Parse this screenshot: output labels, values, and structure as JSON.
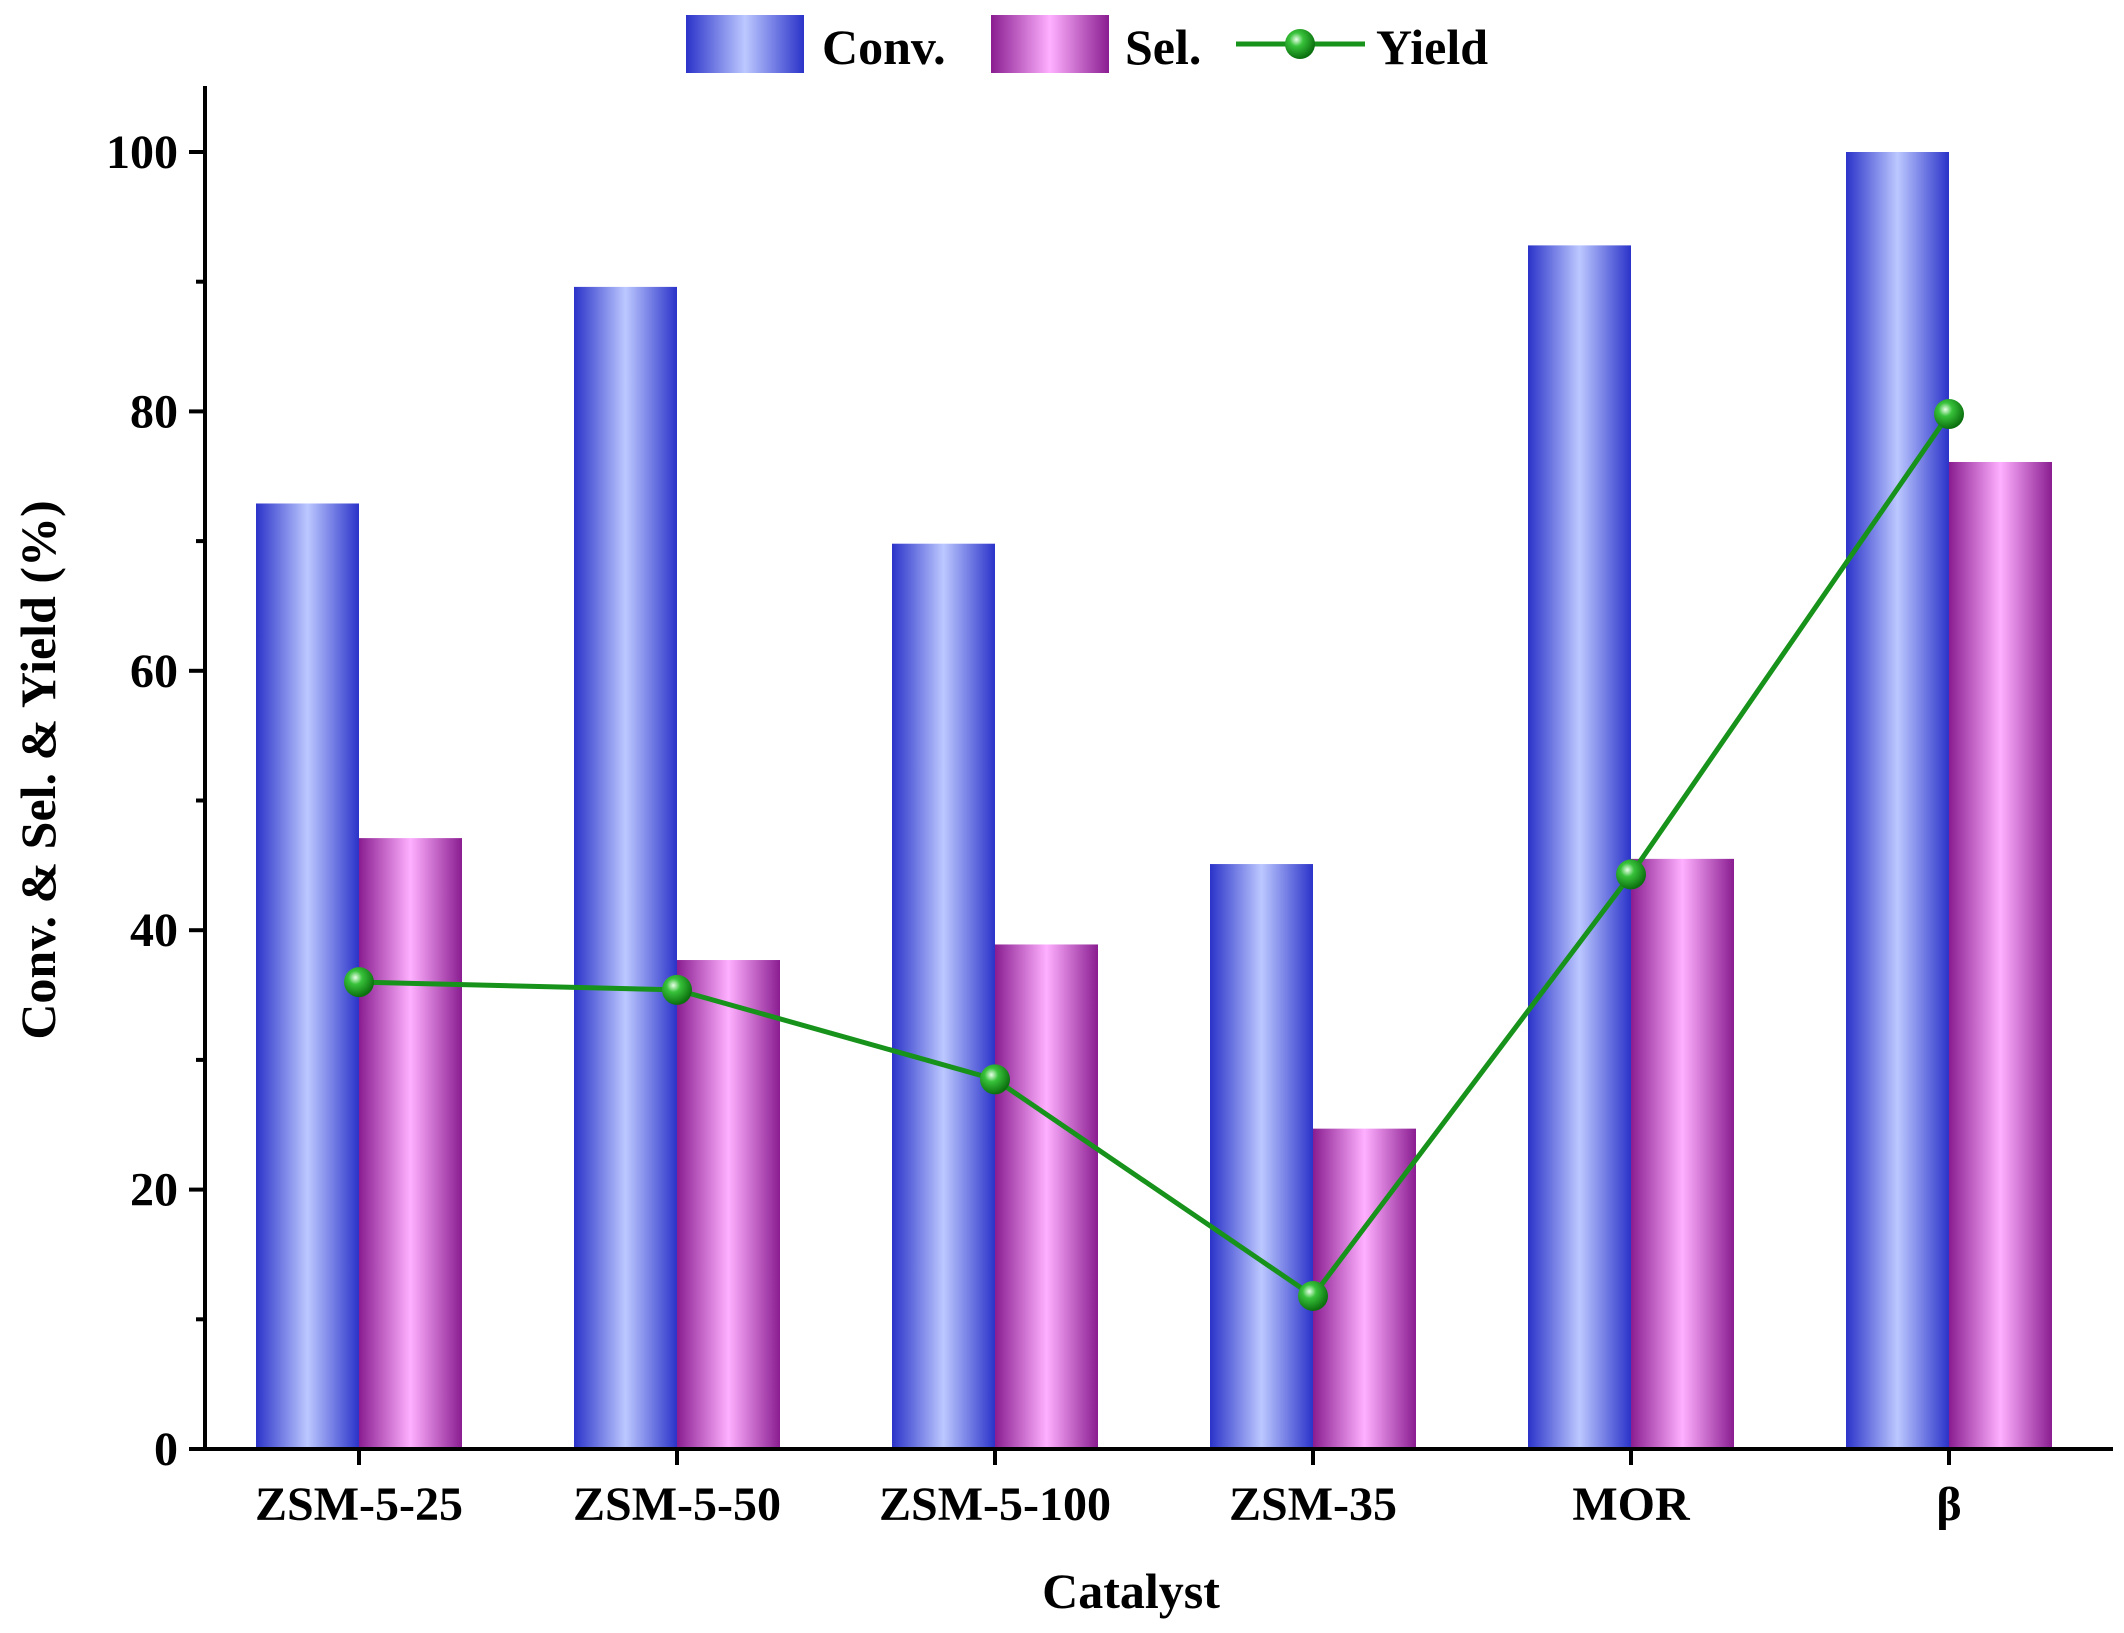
{
  "chart_data": {
    "type": "bar",
    "categories": [
      "ZSM-5-25",
      "ZSM-5-50",
      "ZSM-5-100",
      "ZSM-35",
      "MOR",
      "β"
    ],
    "series": [
      {
        "name": "Conv.",
        "type": "bar",
        "values": [
          72.9,
          89.6,
          69.8,
          45.1,
          92.8,
          100.0
        ],
        "color": "#2b33c9",
        "highlight": "#bcc8ff"
      },
      {
        "name": "Sel.",
        "type": "bar",
        "values": [
          47.1,
          37.7,
          38.9,
          24.7,
          45.5,
          76.1
        ],
        "color": "#8a1d91",
        "highlight": "#ffb0ff"
      },
      {
        "name": "Yield",
        "type": "line",
        "values": [
          36.0,
          35.4,
          28.5,
          11.8,
          44.3,
          79.8
        ],
        "color": "#17921a"
      }
    ],
    "xlabel": "Catalyst",
    "ylabel": "Conv. & Sel. & Yield (%)",
    "ylim": [
      0,
      100
    ],
    "yticks": [
      0,
      20,
      40,
      60,
      80,
      100
    ],
    "legend_position": "top",
    "grid": false
  }
}
